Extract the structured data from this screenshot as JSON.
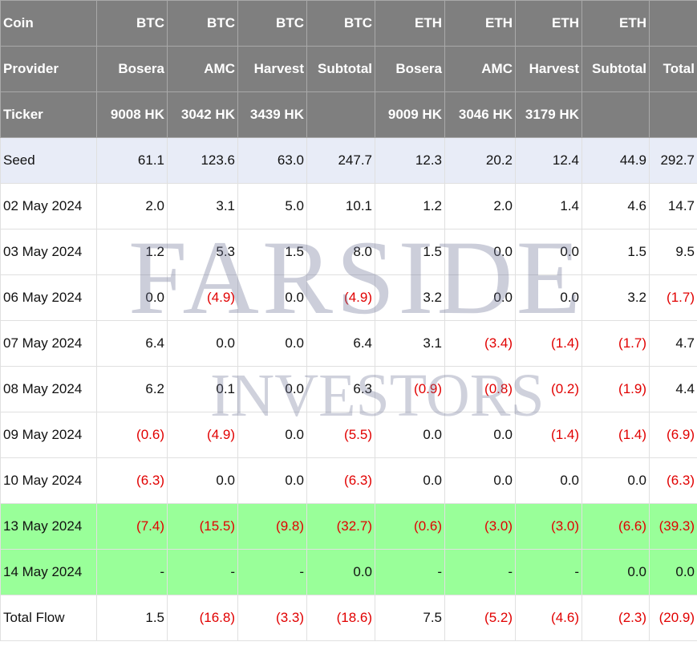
{
  "header_rows": [
    {
      "label": "Coin",
      "cells": [
        "BTC",
        "BTC",
        "BTC",
        "BTC",
        "ETH",
        "ETH",
        "ETH",
        "ETH",
        ""
      ]
    },
    {
      "label": "Provider",
      "cells": [
        "Bosera",
        "AMC",
        "Harvest",
        "Subtotal",
        "Bosera",
        "AMC",
        "Harvest",
        "Subtotal",
        "Total"
      ]
    },
    {
      "label": "Ticker",
      "cells": [
        "9008 HK",
        "3042 HK",
        "3439 HK",
        "",
        "9009 HK",
        "3046 HK",
        "3179 HK",
        "",
        ""
      ]
    }
  ],
  "rows": [
    {
      "label": "Seed",
      "style": "seed",
      "cells": [
        "61.1",
        "123.6",
        "63.0",
        "247.7",
        "12.3",
        "20.2",
        "12.4",
        "44.9",
        "292.7"
      ]
    },
    {
      "label": "02 May 2024",
      "style": "normal",
      "cells": [
        "2.0",
        "3.1",
        "5.0",
        "10.1",
        "1.2",
        "2.0",
        "1.4",
        "4.6",
        "14.7"
      ]
    },
    {
      "label": "03 May 2024",
      "style": "normal",
      "cells": [
        "1.2",
        "5.3",
        "1.5",
        "8.0",
        "1.5",
        "0.0",
        "0.0",
        "1.5",
        "9.5"
      ]
    },
    {
      "label": "06 May 2024",
      "style": "normal",
      "cells": [
        "0.0",
        "(4.9)",
        "0.0",
        "(4.9)",
        "3.2",
        "0.0",
        "0.0",
        "3.2",
        "(1.7)"
      ]
    },
    {
      "label": "07 May 2024",
      "style": "normal",
      "cells": [
        "6.4",
        "0.0",
        "0.0",
        "6.4",
        "3.1",
        "(3.4)",
        "(1.4)",
        "(1.7)",
        "4.7"
      ]
    },
    {
      "label": "08 May 2024",
      "style": "normal",
      "cells": [
        "6.2",
        "0.1",
        "0.0",
        "6.3",
        "(0.9)",
        "(0.8)",
        "(0.2)",
        "(1.9)",
        "4.4"
      ]
    },
    {
      "label": "09 May 2024",
      "style": "normal",
      "cells": [
        "(0.6)",
        "(4.9)",
        "0.0",
        "(5.5)",
        "0.0",
        "0.0",
        "(1.4)",
        "(1.4)",
        "(6.9)"
      ]
    },
    {
      "label": "10 May 2024",
      "style": "normal",
      "cells": [
        "(6.3)",
        "0.0",
        "0.0",
        "(6.3)",
        "0.0",
        "0.0",
        "0.0",
        "0.0",
        "(6.3)"
      ]
    },
    {
      "label": "13 May 2024",
      "style": "green",
      "cells": [
        "(7.4)",
        "(15.5)",
        "(9.8)",
        "(32.7)",
        "(0.6)",
        "(3.0)",
        "(3.0)",
        "(6.6)",
        "(39.3)"
      ]
    },
    {
      "label": "14 May 2024",
      "style": "green",
      "cells": [
        "-",
        "-",
        "-",
        "0.0",
        "-",
        "-",
        "-",
        "0.0",
        "0.0"
      ]
    },
    {
      "label": "Total Flow",
      "style": "normal",
      "cells": [
        "1.5",
        "(16.8)",
        "(3.3)",
        "(18.6)",
        "7.5",
        "(5.2)",
        "(4.6)",
        "(2.3)",
        "(20.9)"
      ]
    }
  ],
  "watermark": {
    "line1": "FARSIDE",
    "line2": "INVESTORS"
  },
  "colors": {
    "header_bg": "#7f7f7f",
    "seed_bg": "#e8ecf7",
    "highlight_bg": "#99ff99",
    "negative": "#e10000"
  }
}
